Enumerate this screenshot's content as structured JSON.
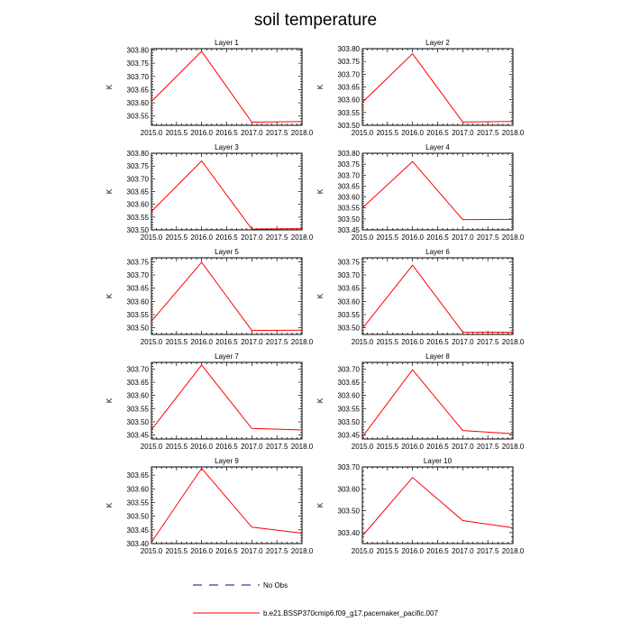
{
  "title": "soil temperature",
  "colors": {
    "series": "#ff0000",
    "no_obs": "#0000aa",
    "axis": "#000000"
  },
  "legend": {
    "placement": "bottom-left",
    "entries": [
      {
        "label": "No Obs",
        "style": "dashed"
      },
      {
        "label": "b.e21.BSSP370cmip6.f09_g17.pacemaker_pacific.007",
        "style": "solid"
      }
    ]
  },
  "chart_data": [
    {
      "type": "line",
      "title": "Layer 1",
      "ylabel": "K",
      "x": [
        2015,
        2016,
        2017,
        2018
      ],
      "xlim": [
        2015,
        2018
      ],
      "xticks": [
        "2015.0",
        "2015.5",
        "2016.0",
        "2016.5",
        "2017.0",
        "2017.5",
        "2018.0"
      ],
      "ylim": [
        303.515,
        303.805
      ],
      "yticks": [
        "303.55",
        "303.60",
        "303.65",
        "303.70",
        "303.75",
        "303.80"
      ],
      "series": [
        {
          "values": [
            303.605,
            303.795,
            303.527,
            303.529
          ]
        }
      ]
    },
    {
      "type": "line",
      "title": "Layer 2",
      "ylabel": "K",
      "x": [
        2015,
        2016,
        2017,
        2018
      ],
      "xlim": [
        2015,
        2018
      ],
      "xticks": [
        "2015.0",
        "2015.5",
        "2016.0",
        "2016.5",
        "2017.0",
        "2017.5",
        "2018.0"
      ],
      "ylim": [
        303.5,
        303.8
      ],
      "yticks": [
        "303.50",
        "303.55",
        "303.60",
        "303.65",
        "303.70",
        "303.75",
        "303.80"
      ],
      "series": [
        {
          "values": [
            303.59,
            303.78,
            303.513,
            303.515
          ]
        }
      ]
    },
    {
      "type": "line",
      "title": "Layer 3",
      "ylabel": "K",
      "x": [
        2015,
        2016,
        2017,
        2018
      ],
      "xlim": [
        2015,
        2018
      ],
      "xticks": [
        "2015.0",
        "2015.5",
        "2016.0",
        "2016.5",
        "2017.0",
        "2017.5",
        "2018.0"
      ],
      "ylim": [
        303.5,
        303.8
      ],
      "yticks": [
        "303.50",
        "303.55",
        "303.60",
        "303.65",
        "303.70",
        "303.75",
        "303.80"
      ],
      "series": [
        {
          "values": [
            303.572,
            303.77,
            303.503,
            303.505
          ]
        }
      ]
    },
    {
      "type": "line",
      "title": "Layer 4",
      "ylabel": "K",
      "x": [
        2015,
        2016,
        2017,
        2018
      ],
      "xlim": [
        2015,
        2018
      ],
      "xticks": [
        "2015.0",
        "2015.5",
        "2016.0",
        "2016.5",
        "2017.0",
        "2017.5",
        "2018.0"
      ],
      "ylim": [
        303.45,
        303.8
      ],
      "yticks": [
        "303.45",
        "303.50",
        "303.55",
        "303.60",
        "303.65",
        "303.70",
        "303.75",
        "303.80"
      ],
      "series": [
        {
          "values": [
            303.55,
            303.762,
            303.497,
            303.498
          ]
        }
      ]
    },
    {
      "type": "line",
      "title": "Layer 5",
      "ylabel": "K",
      "x": [
        2015,
        2016,
        2017,
        2018
      ],
      "xlim": [
        2015,
        2018
      ],
      "xticks": [
        "2015.0",
        "2015.5",
        "2016.0",
        "2016.5",
        "2017.0",
        "2017.5",
        "2018.0"
      ],
      "ylim": [
        303.475,
        303.765
      ],
      "yticks": [
        "303.50",
        "303.55",
        "303.60",
        "303.65",
        "303.70",
        "303.75"
      ],
      "series": [
        {
          "values": [
            303.525,
            303.748,
            303.49,
            303.491
          ]
        }
      ]
    },
    {
      "type": "line",
      "title": "Layer 6",
      "ylabel": "K",
      "x": [
        2015,
        2016,
        2017,
        2018
      ],
      "xlim": [
        2015,
        2018
      ],
      "xticks": [
        "2015.0",
        "2015.5",
        "2016.0",
        "2016.5",
        "2017.0",
        "2017.5",
        "2018.0"
      ],
      "ylim": [
        303.475,
        303.765
      ],
      "yticks": [
        "303.50",
        "303.55",
        "303.60",
        "303.65",
        "303.70",
        "303.75"
      ],
      "series": [
        {
          "values": [
            303.498,
            303.737,
            303.484,
            303.483
          ]
        }
      ]
    },
    {
      "type": "line",
      "title": "Layer 7",
      "ylabel": "K",
      "x": [
        2015,
        2016,
        2017,
        2018
      ],
      "xlim": [
        2015,
        2018
      ],
      "xticks": [
        "2015.0",
        "2015.5",
        "2016.0",
        "2016.5",
        "2017.0",
        "2017.5",
        "2018.0"
      ],
      "ylim": [
        303.435,
        303.725
      ],
      "yticks": [
        "303.45",
        "303.50",
        "303.55",
        "303.60",
        "303.65",
        "303.70"
      ],
      "series": [
        {
          "values": [
            303.47,
            303.715,
            303.475,
            303.469
          ]
        }
      ]
    },
    {
      "type": "line",
      "title": "Layer 8",
      "ylabel": "K",
      "x": [
        2015,
        2016,
        2017,
        2018
      ],
      "xlim": [
        2015,
        2018
      ],
      "xticks": [
        "2015.0",
        "2015.5",
        "2016.0",
        "2016.5",
        "2017.0",
        "2017.5",
        "2018.0"
      ],
      "ylim": [
        303.435,
        303.725
      ],
      "yticks": [
        "303.45",
        "303.50",
        "303.55",
        "303.60",
        "303.65",
        "303.70"
      ],
      "series": [
        {
          "values": [
            303.443,
            303.697,
            303.467,
            303.455
          ]
        }
      ]
    },
    {
      "type": "line",
      "title": "Layer 9",
      "ylabel": "K",
      "x": [
        2015,
        2016,
        2017,
        2018
      ],
      "xlim": [
        2015,
        2018
      ],
      "xticks": [
        "2015.0",
        "2015.5",
        "2016.0",
        "2016.5",
        "2017.0",
        "2017.5",
        "2018.0"
      ],
      "ylim": [
        303.4,
        303.68
      ],
      "yticks": [
        "303.40",
        "303.45",
        "303.50",
        "303.55",
        "303.60",
        "303.65"
      ],
      "series": [
        {
          "values": [
            303.405,
            303.675,
            303.46,
            303.438
          ]
        }
      ]
    },
    {
      "type": "line",
      "title": "Layer 10",
      "ylabel": "K",
      "x": [
        2015,
        2016,
        2017,
        2018
      ],
      "xlim": [
        2015,
        2018
      ],
      "xticks": [
        "2015.0",
        "2015.5",
        "2016.0",
        "2016.5",
        "2017.0",
        "2017.5",
        "2018.0"
      ],
      "ylim": [
        303.35,
        303.7
      ],
      "yticks": [
        "303.40",
        "303.50",
        "303.60",
        "303.70"
      ],
      "series": [
        {
          "values": [
            303.385,
            303.652,
            303.455,
            303.422
          ]
        }
      ]
    }
  ]
}
